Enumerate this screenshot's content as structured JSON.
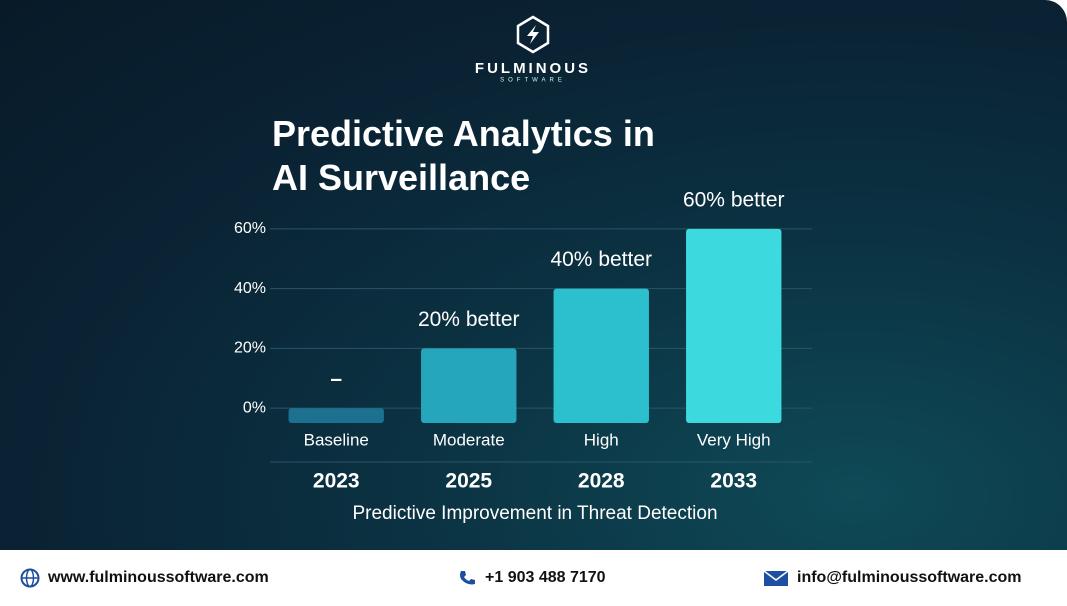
{
  "brand": {
    "name": "FULMINOUS",
    "tagline": "SOFTWARE"
  },
  "chart_data": {
    "type": "bar",
    "title": "Predictive Analytics in AI Surveillance",
    "x_label": "Predictive Improvement in Threat Detection",
    "categories": [
      "Baseline",
      "Moderate",
      "High",
      "Very High"
    ],
    "years": [
      "2023",
      "2025",
      "2028",
      "2033"
    ],
    "values": [
      0,
      20,
      40,
      60
    ],
    "value_labels": [
      "–",
      "20% better",
      "40% better",
      "60% better"
    ],
    "colors": [
      "#1c7090",
      "#25a6bd",
      "#2cc0cf",
      "#3cd9df"
    ],
    "ylim": [
      -5,
      65
    ],
    "yticks": [
      {
        "value": 0,
        "label": "0%"
      },
      {
        "value": 20,
        "label": "20%"
      },
      {
        "value": 40,
        "label": "40%"
      },
      {
        "value": 60,
        "label": "60%"
      }
    ],
    "grid": true
  },
  "footer": {
    "website": "www.fulminoussoftware.com",
    "phone": "+1 903 488 7170",
    "email": "info@fulminoussoftware.com"
  }
}
